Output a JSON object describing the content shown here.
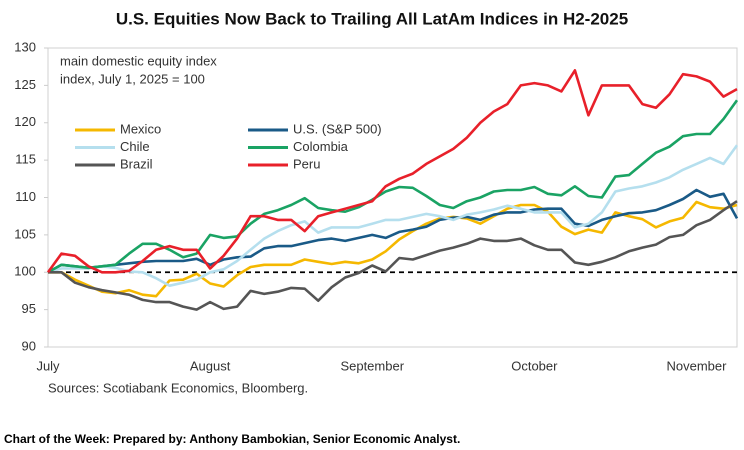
{
  "chart_data": {
    "type": "line",
    "title": "U.S. Equities Now Back to Trailing All LatAm Indices in H2-2025",
    "annotations": [
      "main domestic equity index",
      "index, July 1, 2025 = 100"
    ],
    "source": "Sources: Scotiabank Economics, Bloomberg.",
    "footer": "Chart of the Week:  Prepared by: Anthony Bambokian, Senior Economic Analyst.",
    "categories": [
      "July",
      null,
      null,
      null,
      null,
      null,
      null,
      null,
      null,
      null,
      null,
      null,
      "August",
      null,
      null,
      null,
      null,
      null,
      null,
      null,
      null,
      null,
      null,
      null,
      "September",
      null,
      null,
      null,
      null,
      null,
      null,
      null,
      null,
      null,
      null,
      null,
      "October",
      null,
      null,
      null,
      null,
      null,
      null,
      null,
      null,
      null,
      null,
      null,
      "November",
      null,
      null,
      null
    ],
    "ylim": [
      90,
      130
    ],
    "yticks": [
      90,
      95,
      100,
      105,
      110,
      115,
      120,
      125,
      130
    ],
    "reference_line": 100,
    "series": [
      {
        "name": "Mexico",
        "color": "#f5b800",
        "values": [
          100,
          100,
          99,
          98.2,
          97.4,
          97.2,
          97.6,
          97,
          96.8,
          98.9,
          99,
          99.8,
          98.5,
          98.1,
          99.6,
          100.7,
          101,
          101,
          101,
          101.7,
          101.4,
          101.1,
          101.4,
          101.2,
          101.7,
          102.8,
          104.4,
          105.5,
          106.5,
          107.2,
          107.4,
          107.2,
          106.5,
          107.5,
          108.5,
          109,
          109,
          108.1,
          106.1,
          105.1,
          105.7,
          105.3,
          108,
          107.5,
          107.1,
          106,
          106.8,
          107.3,
          109.4,
          108.7,
          108.5,
          109
        ]
      },
      {
        "name": "U.S. (S&P 500)",
        "color": "#1a5a87",
        "values": [
          100,
          101,
          100.8,
          100.6,
          100.8,
          101,
          101.2,
          101.4,
          101.5,
          101.5,
          101.5,
          101.8,
          101,
          101.7,
          102,
          102.1,
          103.2,
          103.5,
          103.5,
          103.9,
          104.3,
          104.5,
          104.2,
          104.6,
          105,
          104.6,
          105.4,
          105.7,
          106.1,
          107,
          107.3,
          107.4,
          107,
          107.7,
          108,
          108,
          108.4,
          108.5,
          108.5,
          106.5,
          106.2,
          107,
          107.5,
          107.9,
          108,
          108.3,
          109,
          109.8,
          111,
          110.1,
          110.5,
          107.2
        ]
      },
      {
        "name": "Chile",
        "color": "#b5dfee",
        "values": [
          100,
          100.5,
          100.5,
          100.5,
          100.8,
          100.6,
          100.1,
          100,
          99.2,
          98.2,
          98.6,
          99,
          100,
          100.4,
          101.5,
          103,
          104.5,
          105.5,
          106.3,
          106.8,
          105.3,
          106,
          106,
          106,
          106.5,
          107,
          107,
          107.4,
          107.8,
          107.5,
          107,
          107.7,
          108,
          108.4,
          108.9,
          108.5,
          108,
          108,
          108,
          106,
          106.5,
          108,
          110.8,
          111.2,
          111.5,
          112,
          112.7,
          113.7,
          114.5,
          115.3,
          114.5,
          117
        ]
      },
      {
        "name": "Colombia",
        "color": "#1aa364",
        "values": [
          100,
          101,
          100.8,
          100.6,
          100.8,
          101,
          102.5,
          103.8,
          103.8,
          103,
          102,
          102.5,
          105,
          104.6,
          104.8,
          106.5,
          107.8,
          108.3,
          109,
          109.9,
          108.6,
          108.3,
          108.1,
          108.7,
          109.7,
          110.8,
          111.4,
          111.3,
          110.2,
          109,
          108.6,
          109.5,
          110,
          110.8,
          111,
          111,
          111.4,
          110.5,
          110.3,
          111.5,
          110.2,
          110,
          112.8,
          113,
          114.5,
          116,
          116.8,
          118.2,
          118.5,
          118.5,
          120.5,
          123
        ]
      },
      {
        "name": "Brazil",
        "color": "#555555",
        "values": [
          100,
          100,
          98.6,
          98,
          97.6,
          97.3,
          97,
          96.3,
          96,
          96,
          95.4,
          95,
          96,
          95.1,
          95.4,
          97.5,
          97.1,
          97.4,
          97.9,
          97.8,
          96.2,
          98,
          99.3,
          99.9,
          100.9,
          100.1,
          101.9,
          101.7,
          102.3,
          102.9,
          103.3,
          103.8,
          104.5,
          104.2,
          104.2,
          104.5,
          103.6,
          103,
          103,
          101.3,
          101,
          101.4,
          102,
          102.8,
          103.3,
          103.7,
          104.7,
          105,
          106.3,
          107,
          108.3,
          109.5
        ]
      },
      {
        "name": "Peru",
        "color": "#e8202a",
        "values": [
          100,
          102.5,
          102.2,
          100.8,
          100,
          100,
          100.2,
          101.5,
          103,
          103.5,
          103,
          103,
          100.5,
          102.2,
          104.5,
          107.5,
          107.5,
          107,
          107,
          105.5,
          107.5,
          108,
          108.5,
          109,
          109.5,
          111.5,
          112.5,
          113.2,
          114.5,
          115.5,
          116.5,
          118,
          120,
          121.5,
          122.5,
          125,
          125.3,
          125,
          124.2,
          127,
          121,
          125,
          125,
          125,
          122.5,
          122,
          123.8,
          126.5,
          126.2,
          125.5,
          123.5,
          124.5
        ]
      }
    ]
  }
}
